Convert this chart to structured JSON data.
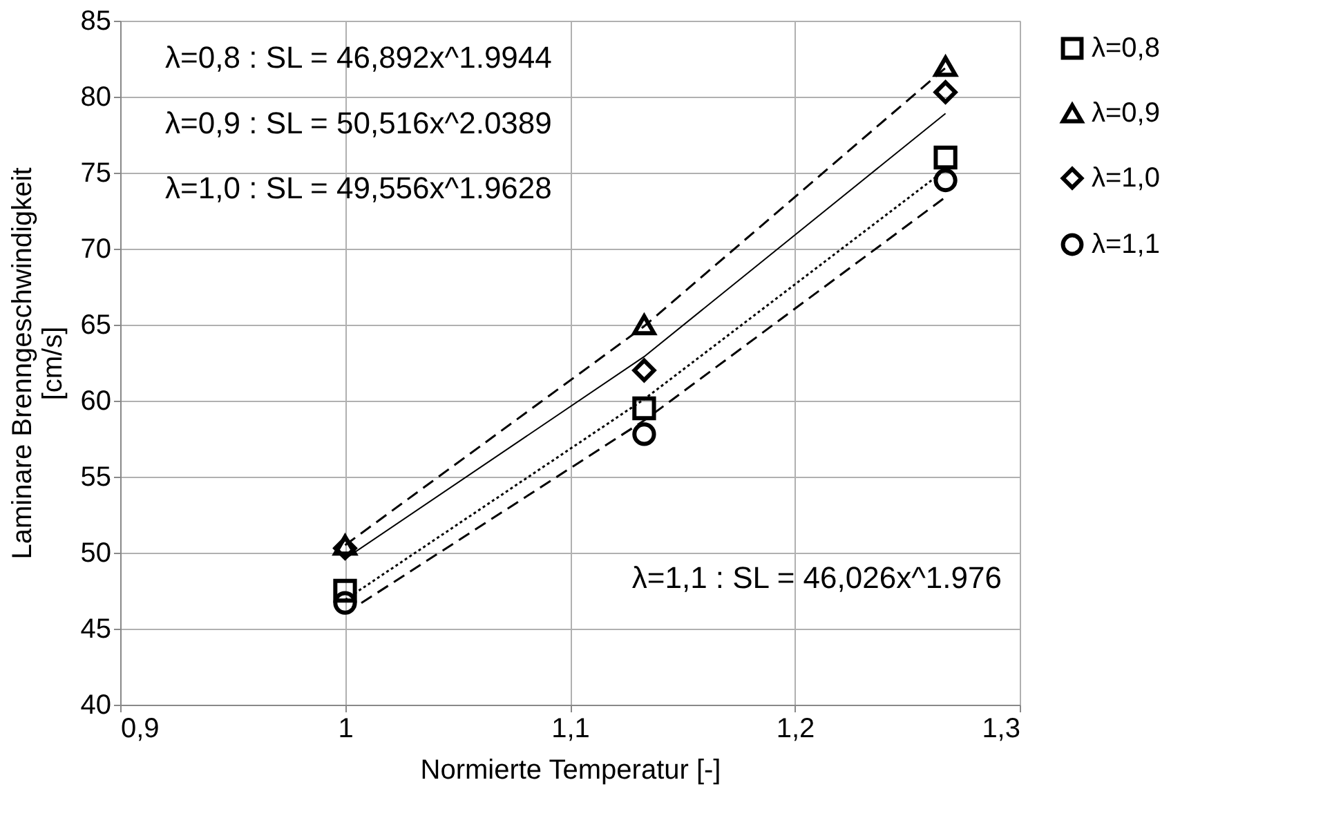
{
  "chart_data": {
    "type": "scatter",
    "xlabel": "Normierte Temperatur [-]",
    "ylabel": "Laminare Brenngeschwindigkeit [cm/s]",
    "x": [
      1,
      1.133,
      1.267
    ],
    "series": [
      {
        "name": "λ=0,8",
        "color": "#000000",
        "marker": "square",
        "values": [
          47.5,
          59.5,
          76
        ]
      },
      {
        "name": "λ=0,9",
        "color": "#000000",
        "marker": "triangle",
        "values": [
          50.5,
          65,
          82
        ]
      },
      {
        "name": "λ=1,0",
        "color": "#000000",
        "marker": "diamond",
        "values": [
          50.3,
          62,
          80.3
        ]
      },
      {
        "name": "λ=1,1",
        "color": "#000000",
        "marker": "circle",
        "values": [
          46.7,
          57.8,
          74.5
        ]
      },
      {
        "type": "line",
        "color": "#000000",
        "line_style": "dotted",
        "marker": "none",
        "x": [
          1,
          1.133,
          1.267
        ],
        "values": [
          46.9,
          60.1,
          75.2
        ]
      },
      {
        "type": "line",
        "color": "#000000",
        "line_style": "dashed",
        "marker": "none",
        "x": [
          1,
          1.133,
          1.267
        ],
        "values": [
          50.5,
          64.9,
          81.9
        ]
      },
      {
        "type": "line",
        "color": "#000000",
        "line_style": "solid",
        "marker": "none",
        "x": [
          1,
          1.133,
          1.267
        ],
        "values": [
          49.6,
          62.9,
          78.9
        ]
      },
      {
        "type": "line",
        "color": "#000000",
        "line_style": "dashed",
        "marker": "none",
        "x": [
          1,
          1.133,
          1.267
        ],
        "values": [
          46.0,
          58.7,
          73.4
        ]
      }
    ],
    "xlim": [
      0.9,
      1.3
    ],
    "xticks": [
      {
        "value": 0.9,
        "label": "0,9"
      },
      1,
      {
        "value": 1.1,
        "label": "1,1"
      },
      {
        "value": 1.2,
        "label": "1,2"
      },
      {
        "value": 1.3,
        "label": "1,3"
      }
    ],
    "ylim": [
      40,
      85
    ],
    "yticks": [
      40,
      45,
      50,
      55,
      60,
      65,
      70,
      75,
      80,
      85
    ],
    "grid": true,
    "legend": "right",
    "annotations": [
      "λ=0,8 : SL = 46,892x^1.9944",
      "λ=0,9 : SL = 50,516x^2.0389",
      "λ=1,0 :  SL = 49,556x^1.9628",
      "λ=1,1 :   SL = 46,026x^1.976"
    ]
  }
}
